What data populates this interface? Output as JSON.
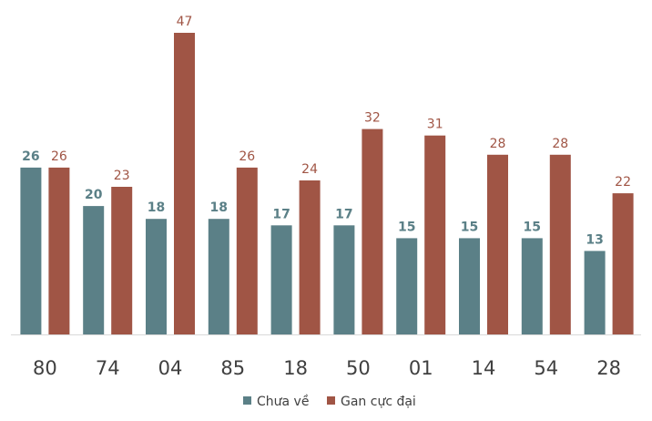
{
  "chart_data": {
    "type": "bar",
    "title": "",
    "xlabel": "",
    "ylabel": "",
    "categories": [
      "80",
      "74",
      "04",
      "85",
      "18",
      "50",
      "01",
      "14",
      "54",
      "28"
    ],
    "series": [
      {
        "name": "Chưa về",
        "color": "#5b8087",
        "values": [
          26,
          20,
          18,
          18,
          17,
          17,
          15,
          15,
          15,
          13
        ]
      },
      {
        "name": "Gan cực đại",
        "color": "#a05545",
        "values": [
          26,
          23,
          47,
          26,
          24,
          32,
          31,
          28,
          28,
          22
        ]
      }
    ],
    "ylim": [
      0,
      47
    ],
    "grid": false,
    "data_labels": true,
    "legend_position": "bottom"
  },
  "colors": {
    "series_0": "#5b8087",
    "series_1": "#a05545",
    "axis_line": "#d9d9d9",
    "category_text": "#404040"
  }
}
